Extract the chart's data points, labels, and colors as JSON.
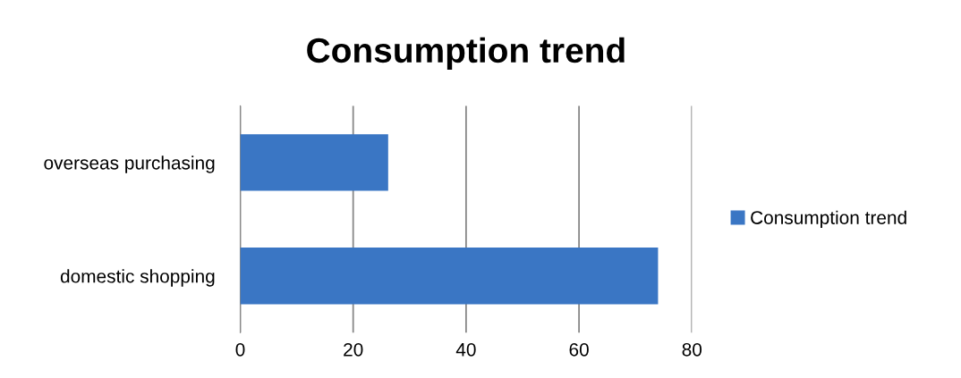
{
  "chart_data": {
    "type": "bar",
    "title": "Consumption trend",
    "orientation": "horizontal",
    "categories": [
      "overseas purchasing",
      "domestic shopping"
    ],
    "series": [
      {
        "name": "Consumption trend",
        "color": "#3a76c4",
        "values": [
          26.2,
          74
        ]
      }
    ],
    "xlim": [
      0,
      80
    ],
    "xticks": [
      0,
      20,
      40,
      60,
      80
    ],
    "grid": "x",
    "legend": "right"
  }
}
